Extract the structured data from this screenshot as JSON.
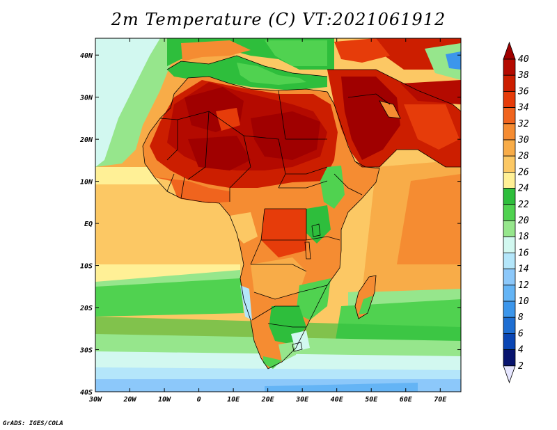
{
  "title": "2m Temperature (C) VT:2021061912",
  "credit": "GrADS: IGES/COLA",
  "map": {
    "lon_range": [
      -30,
      76
    ],
    "lat_range": [
      -40,
      44
    ],
    "lon_ticks": [
      {
        "value": -30,
        "label": "30W"
      },
      {
        "value": -20,
        "label": "20W"
      },
      {
        "value": -10,
        "label": "10W"
      },
      {
        "value": 0,
        "label": "0"
      },
      {
        "value": 10,
        "label": "10E"
      },
      {
        "value": 20,
        "label": "20E"
      },
      {
        "value": 30,
        "label": "30E"
      },
      {
        "value": 40,
        "label": "40E"
      },
      {
        "value": 50,
        "label": "50E"
      },
      {
        "value": 60,
        "label": "60E"
      },
      {
        "value": 70,
        "label": "70E"
      }
    ],
    "lat_ticks": [
      {
        "value": 40,
        "label": "40N"
      },
      {
        "value": 30,
        "label": "30N"
      },
      {
        "value": 20,
        "label": "20N"
      },
      {
        "value": 10,
        "label": "10N"
      },
      {
        "value": 0,
        "label": "EQ"
      },
      {
        "value": -10,
        "label": "10S"
      },
      {
        "value": -20,
        "label": "20S"
      },
      {
        "value": -30,
        "label": "30S"
      },
      {
        "value": -40,
        "label": "40S"
      }
    ]
  },
  "colorbar": {
    "labels": [
      "40",
      "38",
      "36",
      "34",
      "32",
      "30",
      "28",
      "26",
      "24",
      "22",
      "20",
      "18",
      "16",
      "14",
      "12",
      "10",
      "8",
      "6",
      "4",
      "2"
    ],
    "colors": {
      "above_40": "#a00000",
      "38_40": "#b40a00",
      "36_38": "#cc1e00",
      "34_36": "#e63c0a",
      "32_34": "#f0641e",
      "30_32": "#f58c32",
      "28_30": "#f8ac48",
      "26_28": "#fcc864",
      "24_26": "#fff096",
      "22_24": "#2ebe3c",
      "20_22": "#50d250",
      "18_20": "#96e68c",
      "16_18": "#d2f8f0",
      "14_16": "#b4e6fa",
      "12_14": "#8cc8fa",
      "10_12": "#64b4f5",
      "8_10": "#3c96eb",
      "6_8": "#1e6ed2",
      "4_6": "#0a46b4",
      "2_4": "#08146e",
      "below_2": "#e6e6ff"
    }
  }
}
